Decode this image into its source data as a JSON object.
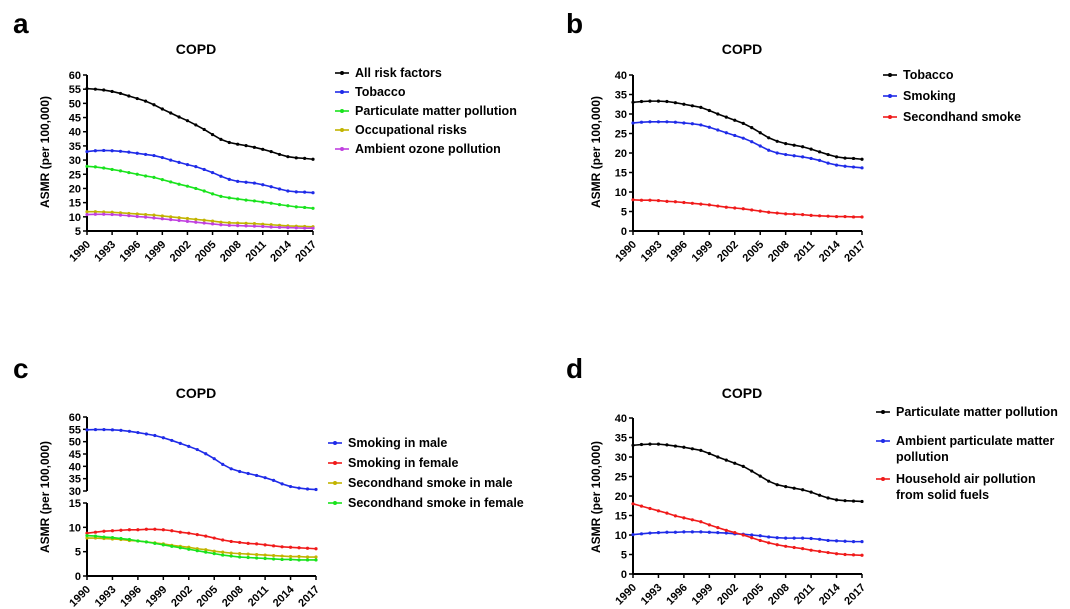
{
  "chart_data": [
    {
      "panel": "a",
      "type": "line",
      "title": "COPD",
      "ylabel": "ASMR (per 100,000)",
      "ylim": [
        5,
        60
      ],
      "yticks": [
        5,
        10,
        15,
        20,
        25,
        30,
        35,
        40,
        45,
        50,
        55,
        60
      ],
      "xticks": [
        1990,
        1993,
        1996,
        1999,
        2002,
        2005,
        2008,
        2011,
        2014,
        2017
      ],
      "legend_position": "right",
      "series": [
        {
          "name": "All risk factors",
          "color": "#000000",
          "values": [
            55.2,
            55.0,
            54.7,
            54.2,
            53.5,
            52.6,
            51.7,
            50.8,
            49.5,
            48.0,
            46.6,
            45.2,
            43.9,
            42.4,
            40.8,
            39.0,
            37.3,
            36.2,
            35.6,
            35.1,
            34.5,
            33.8,
            33.0,
            32.0,
            31.2,
            30.8,
            30.6,
            30.3
          ]
        },
        {
          "name": "Tobacco",
          "color": "#1f2be8",
          "values": [
            33.0,
            33.3,
            33.4,
            33.3,
            33.1,
            32.8,
            32.4,
            32.0,
            31.6,
            30.9,
            30.0,
            29.2,
            28.4,
            27.7,
            26.7,
            25.6,
            24.3,
            23.2,
            22.5,
            22.2,
            21.9,
            21.3,
            20.6,
            19.8,
            19.1,
            18.8,
            18.7,
            18.5
          ]
        },
        {
          "name": "Particulate matter pollution",
          "color": "#19e31d",
          "values": [
            27.8,
            27.6,
            27.2,
            26.7,
            26.2,
            25.6,
            25.0,
            24.4,
            23.9,
            23.1,
            22.3,
            21.5,
            20.8,
            20.0,
            19.1,
            18.1,
            17.2,
            16.7,
            16.3,
            15.9,
            15.6,
            15.2,
            14.8,
            14.3,
            13.9,
            13.5,
            13.3,
            13.0
          ]
        },
        {
          "name": "Occupational risks",
          "color": "#c2b400",
          "values": [
            11.8,
            11.8,
            11.7,
            11.6,
            11.4,
            11.2,
            11.0,
            10.8,
            10.6,
            10.3,
            10.0,
            9.7,
            9.4,
            9.1,
            8.8,
            8.5,
            8.1,
            7.9,
            7.8,
            7.7,
            7.6,
            7.4,
            7.2,
            7.0,
            6.8,
            6.7,
            6.6,
            6.5
          ]
        },
        {
          "name": "Ambient ozone pollution",
          "color": "#c040e0",
          "values": [
            10.8,
            10.9,
            10.9,
            10.8,
            10.6,
            10.4,
            10.1,
            9.9,
            9.6,
            9.3,
            9.0,
            8.7,
            8.4,
            8.1,
            7.8,
            7.5,
            7.2,
            7.0,
            6.9,
            6.8,
            6.7,
            6.6,
            6.4,
            6.3,
            6.2,
            6.1,
            6.0,
            6.0
          ]
        }
      ]
    },
    {
      "panel": "b",
      "type": "line",
      "title": "COPD",
      "ylabel": "ASMR (per 100,000)",
      "ylim": [
        0,
        40
      ],
      "yticks": [
        0,
        5,
        10,
        15,
        20,
        25,
        30,
        35,
        40
      ],
      "xticks": [
        1990,
        1993,
        1996,
        1999,
        2002,
        2005,
        2008,
        2011,
        2014,
        2017
      ],
      "legend_position": "right",
      "series": [
        {
          "name": "Tobacco",
          "color": "#000000",
          "values": [
            33.0,
            33.2,
            33.3,
            33.3,
            33.2,
            32.9,
            32.5,
            32.1,
            31.7,
            30.9,
            30.0,
            29.2,
            28.4,
            27.6,
            26.5,
            25.2,
            23.9,
            23.0,
            22.4,
            22.0,
            21.6,
            21.0,
            20.3,
            19.6,
            19.0,
            18.7,
            18.6,
            18.4
          ]
        },
        {
          "name": "Smoking",
          "color": "#1f2be8",
          "values": [
            27.7,
            27.9,
            28.0,
            28.0,
            28.0,
            27.9,
            27.7,
            27.5,
            27.2,
            26.6,
            25.9,
            25.2,
            24.5,
            23.8,
            22.9,
            21.8,
            20.7,
            20.0,
            19.6,
            19.3,
            19.0,
            18.6,
            18.1,
            17.4,
            16.9,
            16.6,
            16.4,
            16.2
          ]
        },
        {
          "name": "Secondhand smoke",
          "color": "#f01a1a",
          "values": [
            8.0,
            7.9,
            7.9,
            7.8,
            7.6,
            7.5,
            7.3,
            7.1,
            6.9,
            6.7,
            6.4,
            6.1,
            5.9,
            5.7,
            5.4,
            5.1,
            4.8,
            4.6,
            4.4,
            4.3,
            4.2,
            4.0,
            3.9,
            3.8,
            3.7,
            3.7,
            3.6,
            3.6
          ]
        }
      ]
    },
    {
      "panel": "c",
      "type": "line",
      "title": "COPD",
      "ylabel": "ASMR (per 100,000)",
      "ylim_upper": [
        30,
        60
      ],
      "ylim_lower": [
        0,
        15
      ],
      "yticks_upper": [
        30,
        35,
        40,
        45,
        50,
        55,
        60
      ],
      "yticks_lower": [
        0,
        5,
        10,
        15
      ],
      "broken_axis": true,
      "xticks": [
        1990,
        1993,
        1996,
        1999,
        2002,
        2005,
        2008,
        2011,
        2014,
        2017
      ],
      "legend_position": "right",
      "series": [
        {
          "name": "Smoking in male",
          "color": "#1f2be8",
          "axis": "upper",
          "values": [
            54.8,
            54.9,
            54.9,
            54.8,
            54.6,
            54.2,
            53.7,
            53.1,
            52.5,
            51.6,
            50.5,
            49.3,
            48.1,
            46.8,
            45.1,
            43.1,
            40.8,
            39.0,
            37.9,
            37.1,
            36.3,
            35.4,
            34.3,
            32.9,
            31.8,
            31.2,
            30.8,
            30.6
          ]
        },
        {
          "name": "Smoking in female",
          "color": "#f01a1a",
          "axis": "lower",
          "values": [
            8.8,
            9.0,
            9.2,
            9.3,
            9.4,
            9.5,
            9.5,
            9.6,
            9.6,
            9.5,
            9.3,
            9.0,
            8.8,
            8.5,
            8.2,
            7.8,
            7.4,
            7.1,
            6.9,
            6.7,
            6.6,
            6.4,
            6.2,
            6.0,
            5.9,
            5.8,
            5.7,
            5.6
          ]
        },
        {
          "name": "Secondhand smoke in male",
          "color": "#c2b400",
          "axis": "lower",
          "values": [
            7.8,
            7.8,
            7.7,
            7.6,
            7.5,
            7.3,
            7.2,
            7.0,
            6.8,
            6.6,
            6.3,
            6.1,
            5.9,
            5.6,
            5.4,
            5.1,
            4.9,
            4.7,
            4.6,
            4.5,
            4.4,
            4.3,
            4.2,
            4.1,
            4.0,
            4.0,
            3.9,
            3.9
          ]
        },
        {
          "name": "Secondhand smoke in female",
          "color": "#19e31d",
          "axis": "lower",
          "values": [
            8.3,
            8.2,
            8.0,
            7.9,
            7.7,
            7.5,
            7.2,
            7.0,
            6.7,
            6.4,
            6.1,
            5.8,
            5.5,
            5.2,
            4.9,
            4.6,
            4.3,
            4.1,
            3.9,
            3.8,
            3.7,
            3.6,
            3.5,
            3.4,
            3.4,
            3.3,
            3.3,
            3.3
          ]
        }
      ]
    },
    {
      "panel": "d",
      "type": "line",
      "title": "COPD",
      "ylabel": "ASMR (per 100,000)",
      "ylim": [
        0,
        40
      ],
      "yticks": [
        0,
        5,
        10,
        15,
        20,
        25,
        30,
        35,
        40
      ],
      "xticks": [
        1990,
        1993,
        1996,
        1999,
        2002,
        2005,
        2008,
        2011,
        2014,
        2017
      ],
      "legend_position": "right",
      "series": [
        {
          "name": "Particulate matter pollution",
          "color": "#000000",
          "values": [
            33.0,
            33.2,
            33.3,
            33.3,
            33.1,
            32.8,
            32.5,
            32.1,
            31.7,
            30.9,
            30.0,
            29.2,
            28.4,
            27.6,
            26.4,
            25.1,
            23.8,
            22.9,
            22.4,
            22.0,
            21.6,
            21.0,
            20.2,
            19.5,
            19.0,
            18.8,
            18.7,
            18.6
          ]
        },
        {
          "name": "Ambient particulate matter pollution",
          "color": "#1f2be8",
          "values": [
            10.1,
            10.3,
            10.5,
            10.6,
            10.7,
            10.7,
            10.8,
            10.8,
            10.8,
            10.7,
            10.6,
            10.5,
            10.3,
            10.2,
            10.0,
            9.8,
            9.5,
            9.3,
            9.2,
            9.2,
            9.2,
            9.1,
            8.9,
            8.6,
            8.5,
            8.4,
            8.3,
            8.3
          ]
        },
        {
          "name": "Household air pollution from solid fuels",
          "color": "#f01a1a",
          "values": [
            18.0,
            17.4,
            16.8,
            16.2,
            15.6,
            14.9,
            14.4,
            13.9,
            13.4,
            12.6,
            11.9,
            11.2,
            10.6,
            10.0,
            9.3,
            8.6,
            8.0,
            7.5,
            7.1,
            6.8,
            6.5,
            6.1,
            5.8,
            5.5,
            5.2,
            5.0,
            4.9,
            4.8
          ]
        }
      ]
    }
  ],
  "legend_text": {
    "a": [
      "All risk factors",
      "Tobacco",
      "Particulate matter pollution",
      "Occupational risks",
      "Ambient ozone pollution"
    ],
    "b": [
      "Tobacco",
      "Smoking",
      "Secondhand smoke"
    ],
    "c": [
      "Smoking in male",
      "Smoking in female",
      "Secondhand smoke in male",
      "Secondhand smoke in female"
    ],
    "d": [
      "Particulate matter pollution",
      "Ambient particulate matter",
      "pollution",
      "Household air pollution",
      " from solid fuels"
    ]
  }
}
